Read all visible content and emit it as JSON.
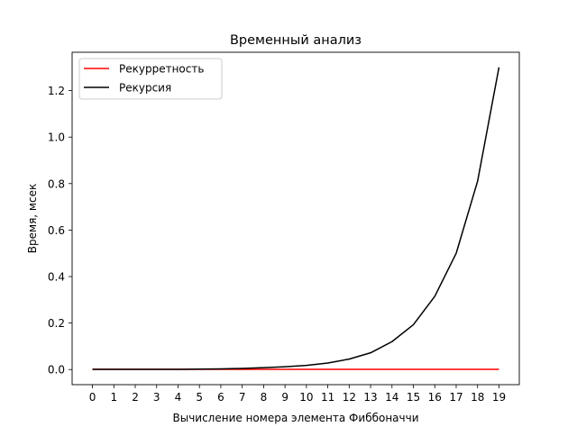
{
  "chart_data": {
    "type": "line",
    "title": "Временный анализ",
    "xlabel": "Вычисление номера элемента Фиббоначчи",
    "ylabel": "Время, мсек",
    "x": [
      0,
      1,
      2,
      3,
      4,
      5,
      6,
      7,
      8,
      9,
      10,
      11,
      12,
      13,
      14,
      15,
      16,
      17,
      18,
      19
    ],
    "xlim": [
      -0.95,
      19.95
    ],
    "ylim": [
      -0.065,
      1.365
    ],
    "xticks": [
      0,
      1,
      2,
      3,
      4,
      5,
      6,
      7,
      8,
      9,
      10,
      11,
      12,
      13,
      14,
      15,
      16,
      17,
      18,
      19
    ],
    "yticks": [
      0.0,
      0.2,
      0.4,
      0.6,
      0.8,
      1.0,
      1.2
    ],
    "ytick_labels": [
      "0.0",
      "0.2",
      "0.4",
      "0.6",
      "0.8",
      "1.0",
      "1.2"
    ],
    "grid": false,
    "legend_position": "top-left",
    "series": [
      {
        "name": "Рекурретность",
        "color": "#ff0000",
        "values": [
          0.001,
          0.001,
          0.001,
          0.001,
          0.001,
          0.001,
          0.001,
          0.001,
          0.001,
          0.001,
          0.001,
          0.001,
          0.001,
          0.001,
          0.001,
          0.001,
          0.001,
          0.001,
          0.001,
          0.001
        ]
      },
      {
        "name": "Рекурсия",
        "color": "#000000",
        "values": [
          0.001,
          0.001,
          0.001,
          0.001,
          0.001,
          0.002,
          0.003,
          0.005,
          0.008,
          0.012,
          0.018,
          0.028,
          0.045,
          0.072,
          0.12,
          0.193,
          0.315,
          0.5,
          0.81,
          1.3
        ]
      }
    ]
  }
}
